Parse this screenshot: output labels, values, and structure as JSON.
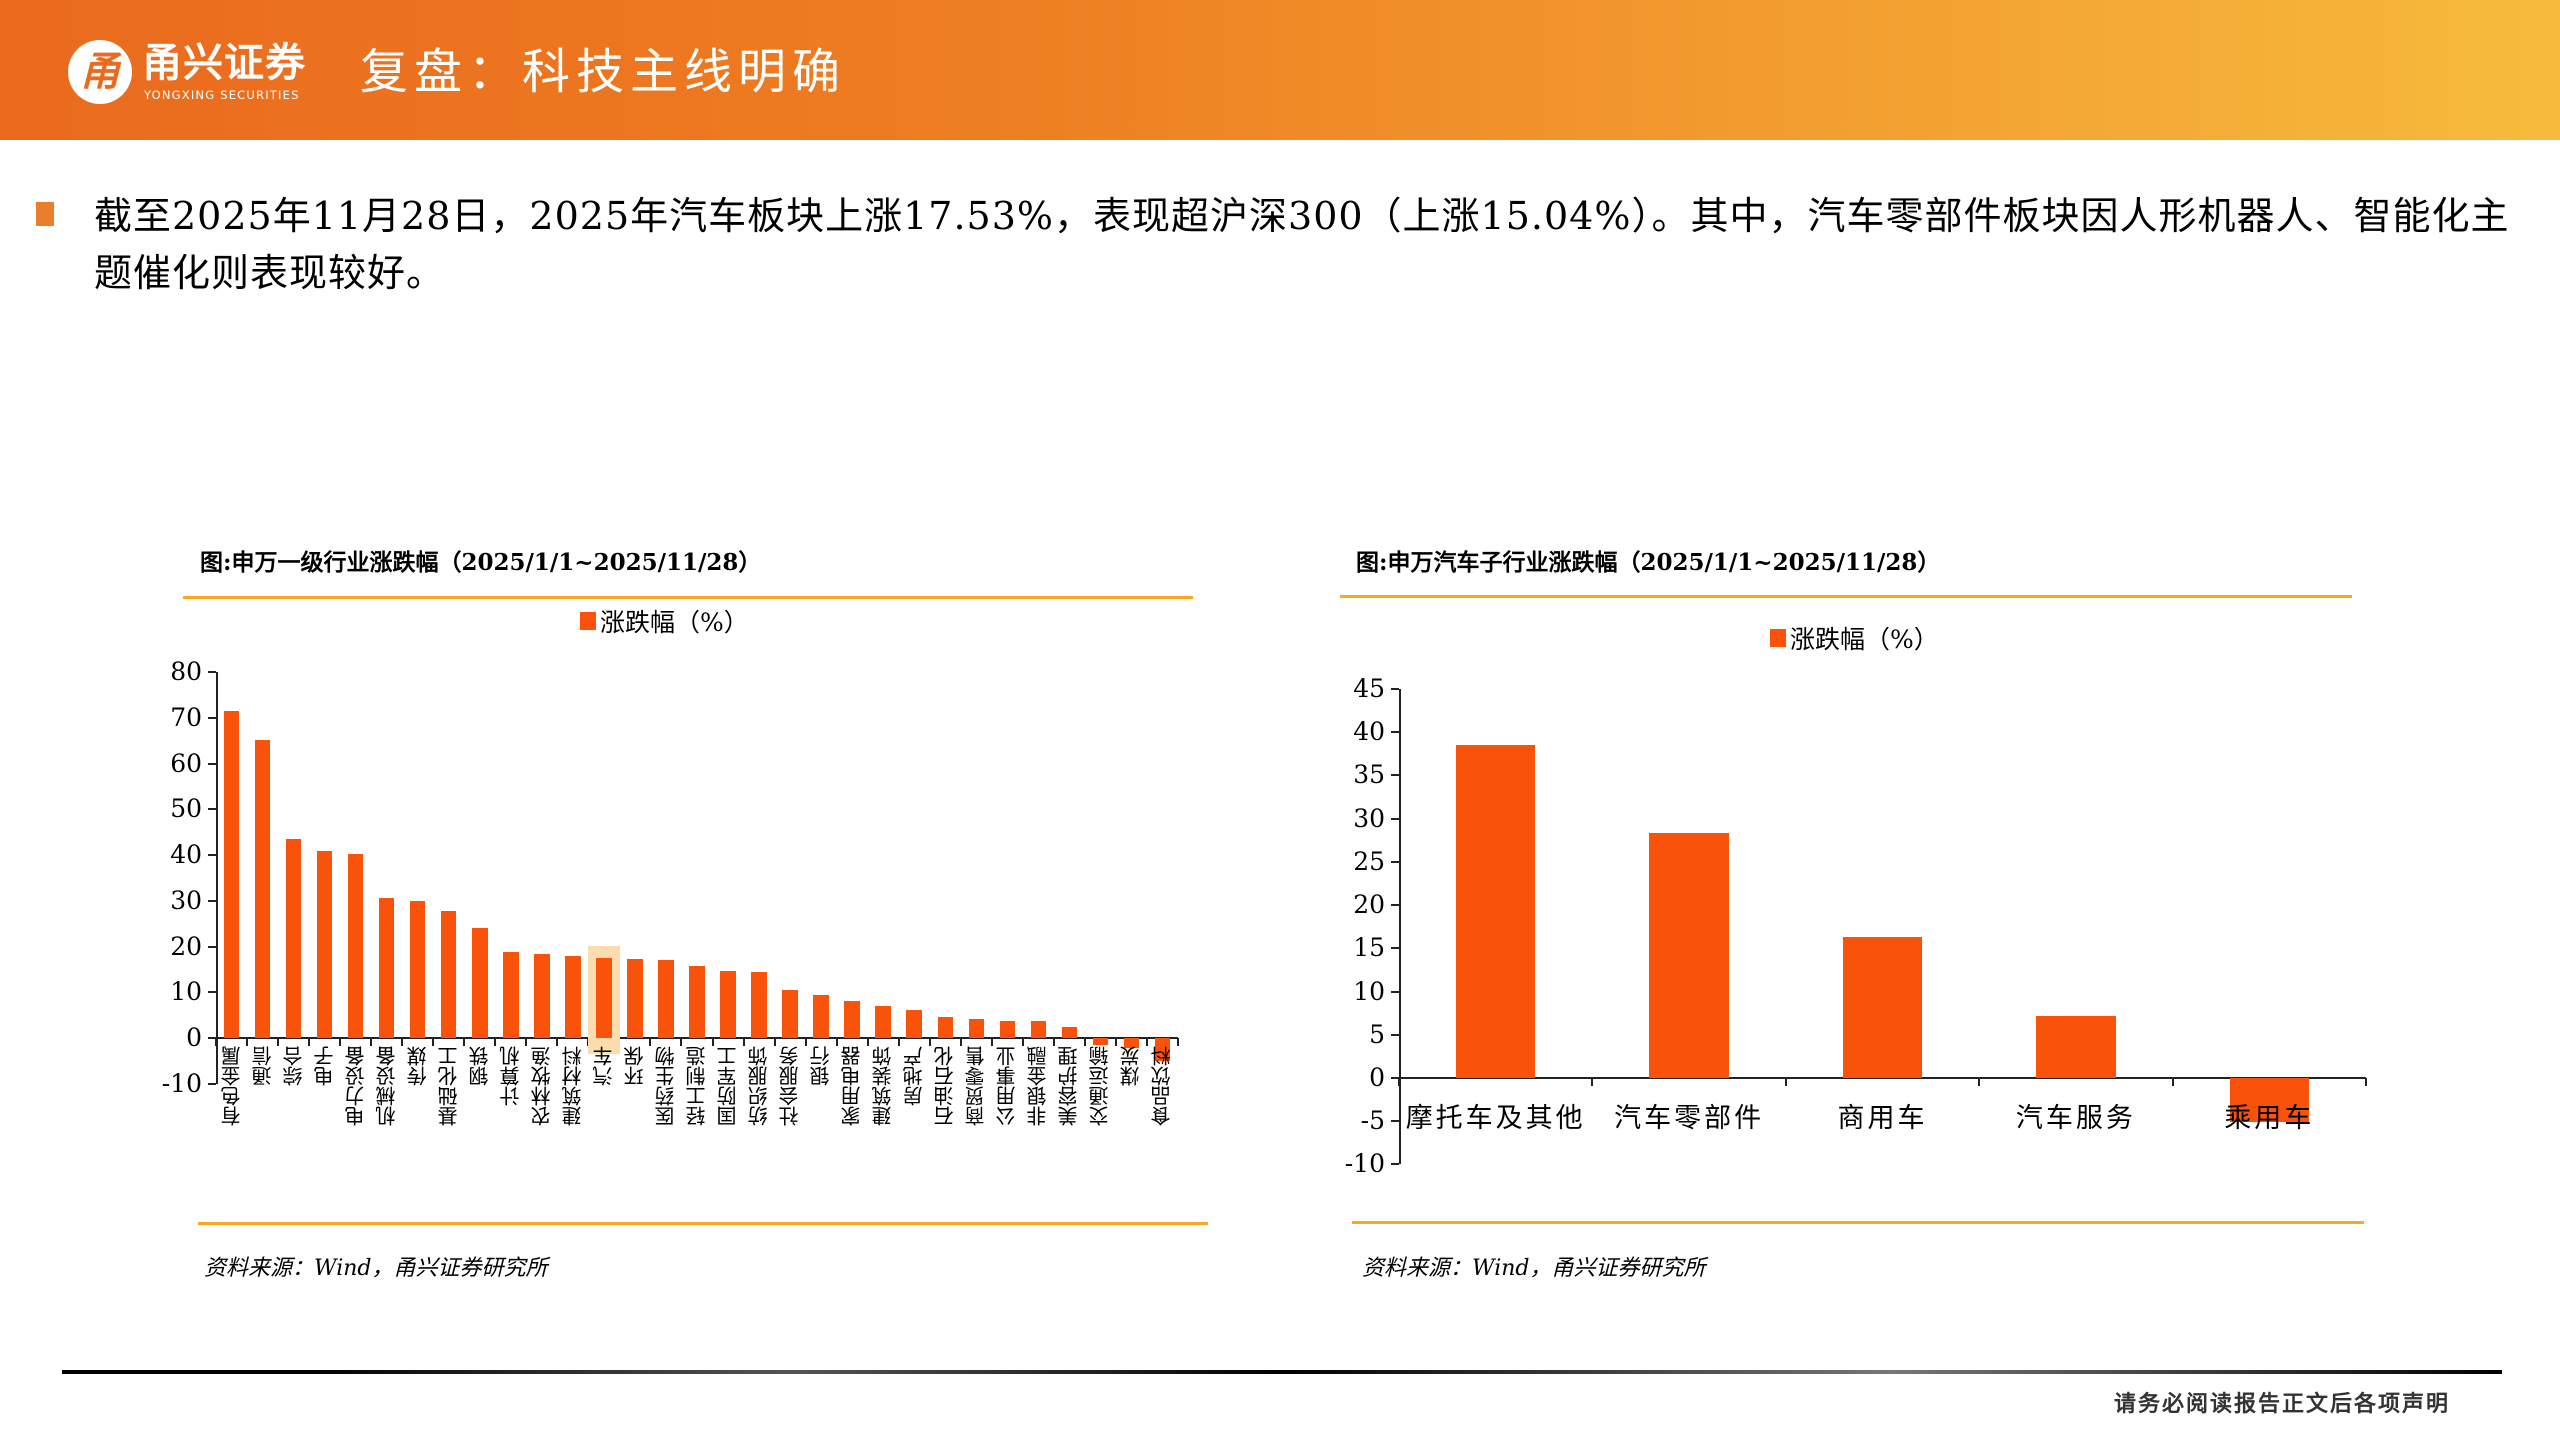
{
  "header": {
    "logo_glyph": "甬",
    "logo_cn": "甬兴证券",
    "logo_en": "YONGXING SECURITIES",
    "title": "复盘：科技主线明确",
    "gradient_start": "#EA6A1E",
    "gradient_end": "#F6BB3C"
  },
  "summary": {
    "bullet_color": "#E97F2C",
    "text": "截至2025年11月28日，2025年汽车板块上涨17.53%，表现超沪深300（上涨15.04%）。其中，汽车零部件板块因人形机器人、智能化主题催化则表现较好。"
  },
  "charts": {
    "left": {
      "title": "图:申万一级行业涨跌幅（2025/1/1~2025/11/28）",
      "legend": "涨跌幅（%）",
      "source": "资料来源：Wind，甬兴证券研究所",
      "y_ticks": [
        "80",
        "70",
        "60",
        "50",
        "40",
        "30",
        "20",
        "10",
        "0",
        "-10"
      ]
    },
    "right": {
      "title": "图:申万汽车子行业涨跌幅（2025/1/1~2025/11/28）",
      "legend": "涨跌幅（%）",
      "source": "资料来源：Wind，甬兴证券研究所",
      "y_ticks": [
        "45",
        "40",
        "35",
        "30",
        "25",
        "20",
        "15",
        "10",
        "5",
        "0",
        "-5",
        "-10"
      ]
    }
  },
  "chart_data": [
    {
      "type": "bar",
      "title": "图:申万一级行业涨跌幅（2025/1/1~2025/11/28）",
      "xlabel": "",
      "ylabel": "",
      "ylim": [
        -10,
        80
      ],
      "legend": [
        "涨跌幅（%）"
      ],
      "legend_position": "top",
      "grid": false,
      "bar_color": "#F9530B",
      "highlight_category": "汽车",
      "highlight_color": "#FBDDB0",
      "categories": [
        "有色金属",
        "通信",
        "综合",
        "电子",
        "电力设备",
        "机械设备",
        "传媒",
        "基础化工",
        "钢铁",
        "计算机",
        "农林牧渔",
        "建筑材料",
        "汽车",
        "环保",
        "医药生物",
        "轻工制造",
        "国防军工",
        "纺织服饰",
        "社会服务",
        "银行",
        "家用电器",
        "建筑装饰",
        "房地产",
        "石油石化",
        "商贸零售",
        "公用事业",
        "非银金融",
        "美容护理",
        "交通运输",
        "煤炭",
        "食品饮料"
      ],
      "series": [
        {
          "name": "涨跌幅（%）",
          "values": [
            71.5,
            65.2,
            43.5,
            40.8,
            40.3,
            30.6,
            29.9,
            27.8,
            24.1,
            18.7,
            18.4,
            18.0,
            17.5,
            17.2,
            17.0,
            15.8,
            14.7,
            14.5,
            10.5,
            9.3,
            8.0,
            6.9,
            6.2,
            4.5,
            4.2,
            3.7,
            3.7,
            2.3,
            -1.5,
            -2.1,
            -5.0
          ]
        }
      ],
      "source": "资料来源：Wind，甬兴证券研究所"
    },
    {
      "type": "bar",
      "title": "图:申万汽车子行业涨跌幅（2025/1/1~2025/11/28）",
      "xlabel": "",
      "ylabel": "",
      "ylim": [
        -10,
        45
      ],
      "legend": [
        "涨跌幅（%）"
      ],
      "legend_position": "top",
      "grid": false,
      "bar_color": "#F9530B",
      "categories": [
        "摩托车及其他",
        "汽车零部件",
        "商用车",
        "汽车服务",
        "乘用车"
      ],
      "series": [
        {
          "name": "涨跌幅（%）",
          "values": [
            38.5,
            28.3,
            16.3,
            7.2,
            -5.1
          ]
        }
      ],
      "source": "资料来源：Wind，甬兴证券研究所"
    }
  ],
  "footer": {
    "disclaimer": "请务必阅读报告正文后各项声明"
  }
}
